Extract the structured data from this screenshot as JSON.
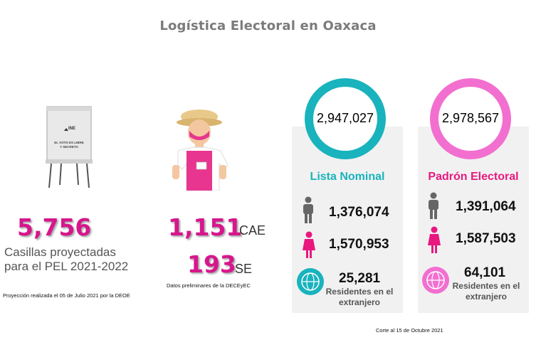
{
  "title": "Logística Electoral en Oaxaca",
  "left": {
    "booth_label_1": "INE",
    "booth_label_2": "EL VOTO ES LIBRE",
    "booth_label_3": "Y SECRETO",
    "casillas_value": "5,756",
    "casillas_label": "Casillas proyectadas para el PEL 2021-2022",
    "casillas_note": "Proyección realizada el 05 de Julio 2021 por la DEOE"
  },
  "middle": {
    "cae_value": "1,151",
    "cae_unit": "CAE",
    "se_value": "193",
    "se_unit": "SE",
    "note": "Datos preliminares de la DECEyEC"
  },
  "lista_nominal": {
    "total": "2,947,027",
    "title": "Lista Nominal",
    "men": "1,376,074",
    "women": "1,570,953",
    "abroad_value": "25,281",
    "abroad_label": "Residentes en el extranjero",
    "accent": "#18b3bd"
  },
  "padron_electoral": {
    "total": "2,978,567",
    "title": "Padrón Electoral",
    "men": "1,391,064",
    "women": "1,587,503",
    "abroad_value": "64,101",
    "abroad_label": "Residentes en el extranjero",
    "accent": "#f26fd0"
  },
  "footer_note": "Corte al 15 de Octubre 2021",
  "icons": [
    "voting-booth-icon",
    "person-mask-icon",
    "man-icon",
    "woman-icon",
    "globe-icon"
  ]
}
